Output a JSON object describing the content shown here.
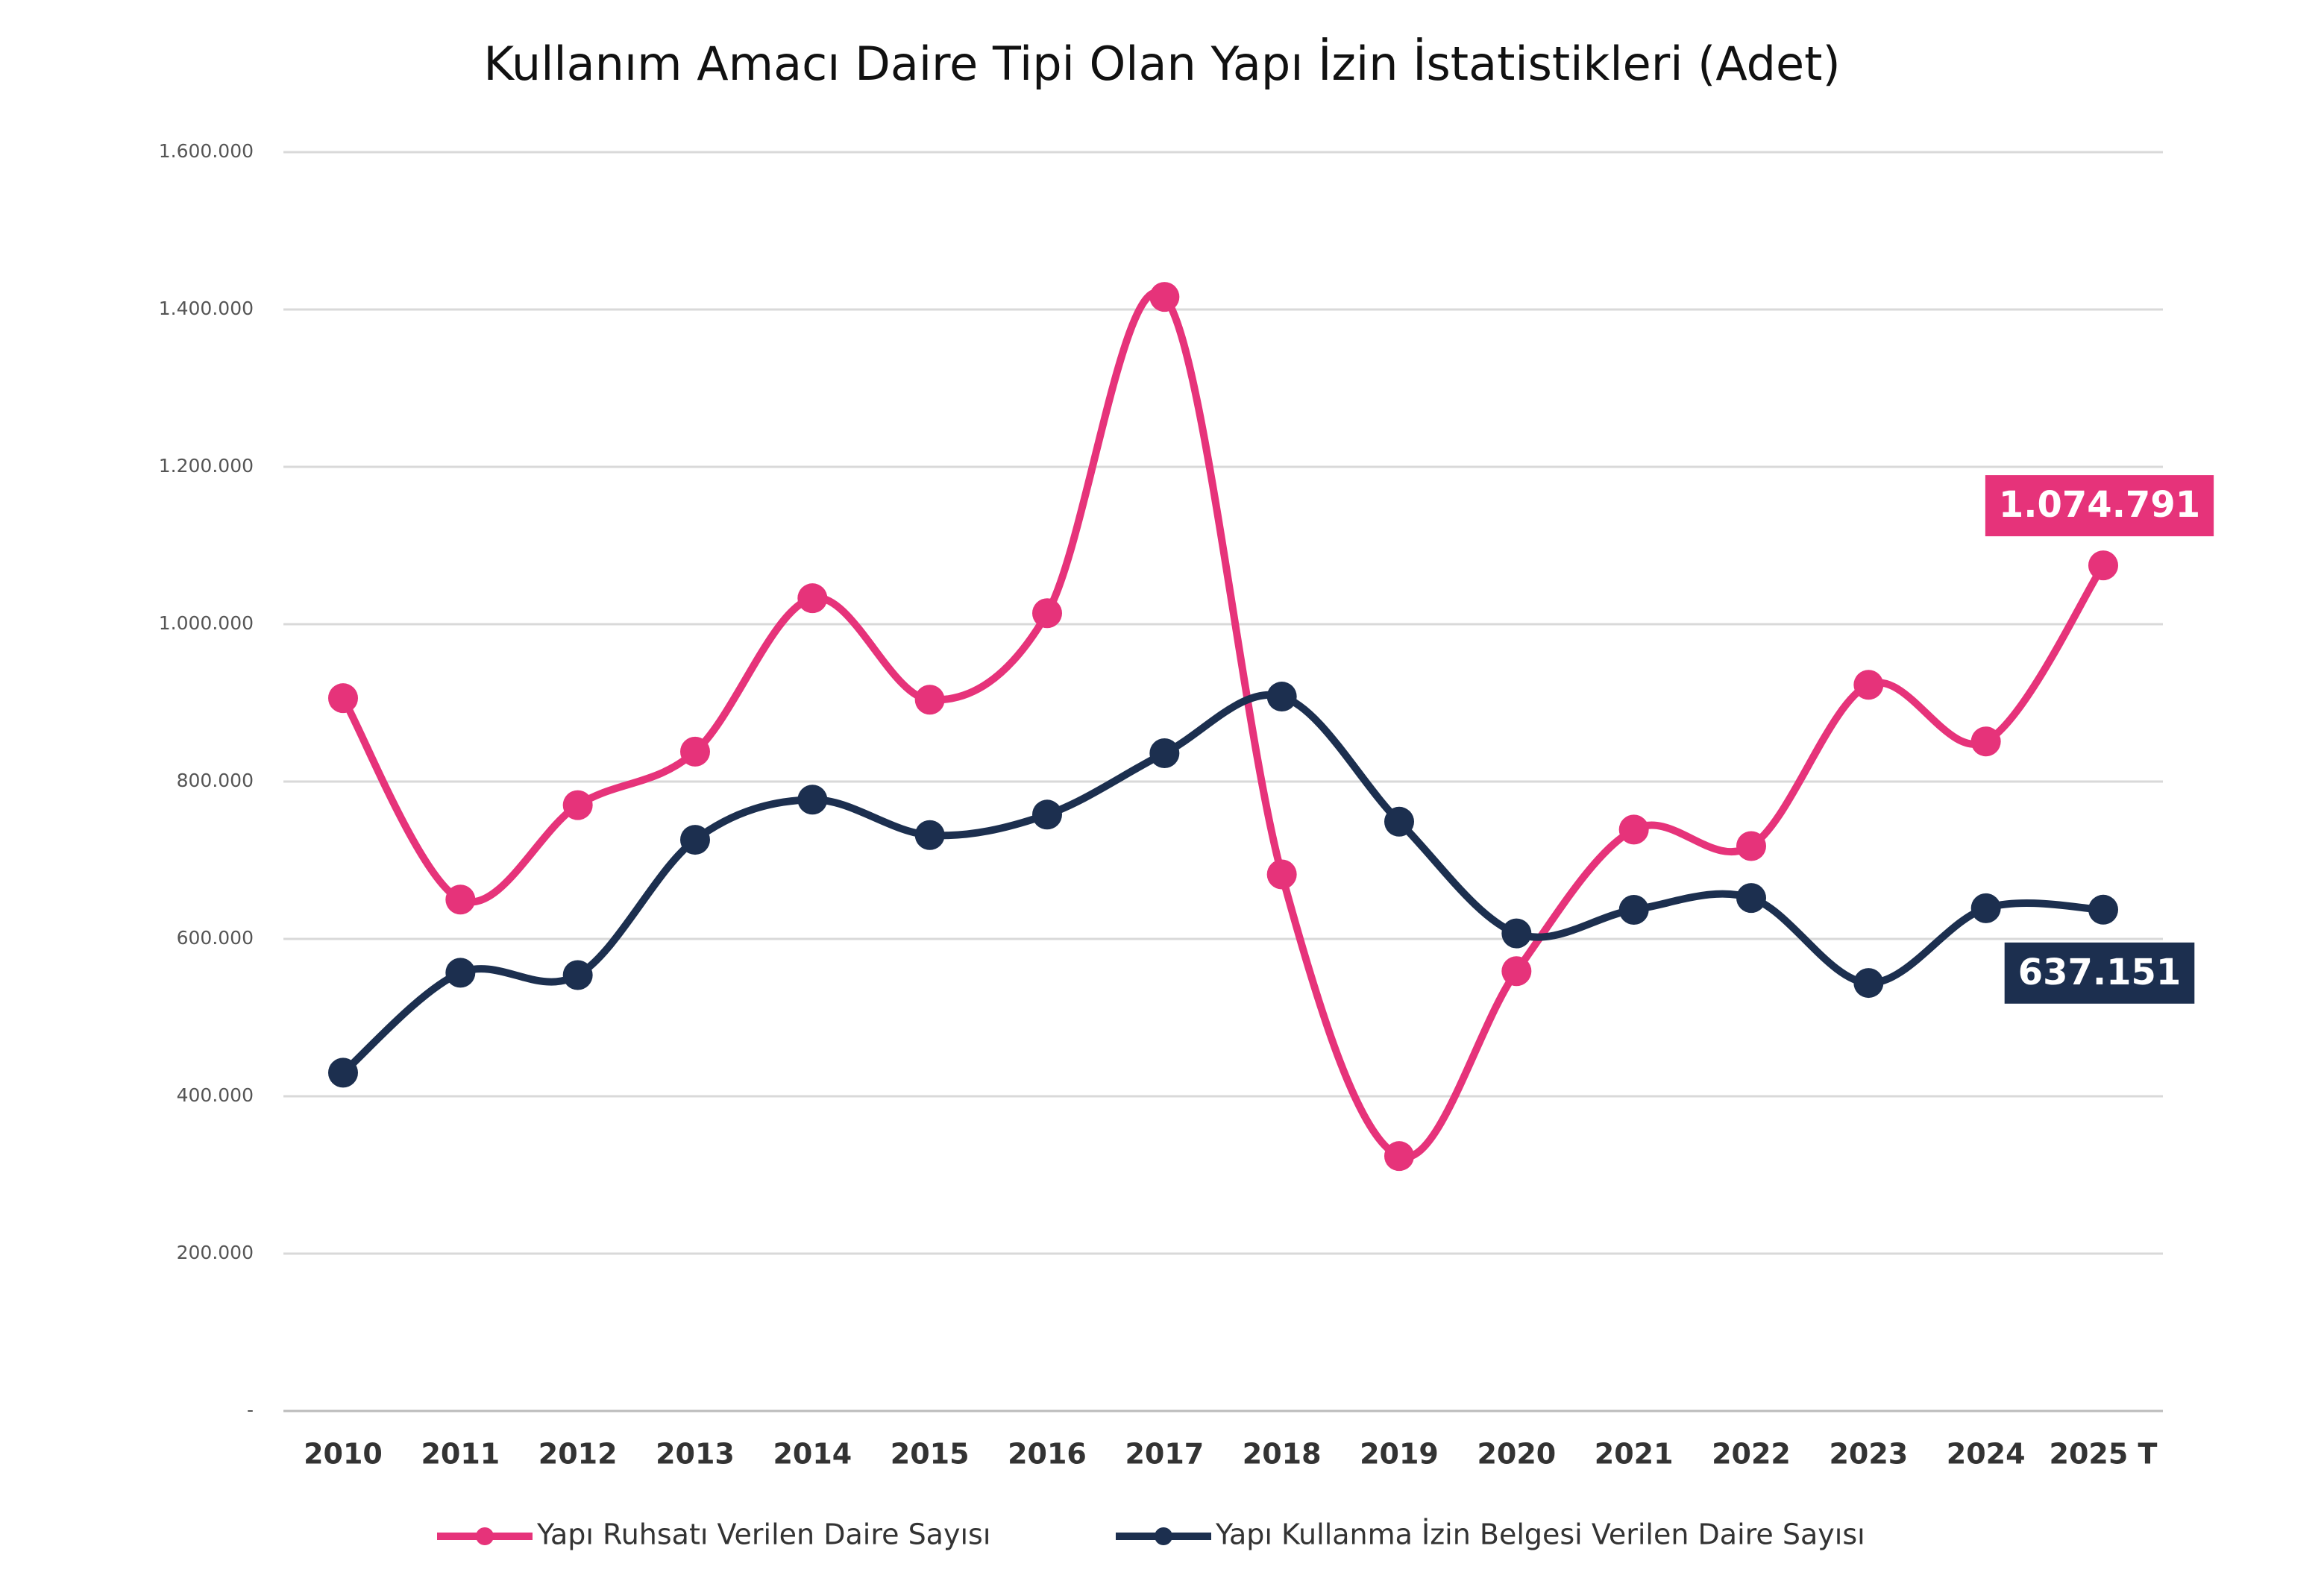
{
  "chart_data": {
    "type": "line",
    "title": "Kullanım Amacı Daire Tipi Olan Yapı İzin İstatistikleri (Adet)",
    "categories": [
      "2010",
      "2011",
      "2012",
      "2013",
      "2014",
      "2015",
      "2016",
      "2017",
      "2018",
      "2019",
      "2020",
      "2021",
      "2022",
      "2023",
      "2024",
      "2025 T"
    ],
    "series": [
      {
        "name": "Yapı Ruhsatı Verilen Daire Sayısı",
        "color": "#e6337a",
        "values": [
          906000,
          650000,
          770000,
          838000,
          1033000,
          904000,
          1014000,
          1416000,
          682000,
          324000,
          559000,
          739000,
          718000,
          923000,
          851000,
          1074791
        ],
        "value_labels": [
          null,
          null,
          null,
          null,
          null,
          null,
          null,
          null,
          null,
          null,
          null,
          null,
          null,
          null,
          null,
          "1.074.791"
        ]
      },
      {
        "name": "Yapı Kullanma İzin Belgesi Verilen Daire Sayısı",
        "color": "#1c2f4f",
        "values": [
          430000,
          557000,
          554000,
          726000,
          777000,
          732000,
          758000,
          836000,
          908000,
          749000,
          607000,
          637000,
          652000,
          544000,
          639000,
          637151
        ],
        "value_labels": [
          null,
          null,
          null,
          null,
          null,
          null,
          null,
          null,
          null,
          null,
          null,
          null,
          null,
          null,
          null,
          "637.151"
        ]
      }
    ],
    "ylim": [
      0,
      1600000
    ],
    "yticks": [
      {
        "value": 0,
        "label": "-"
      },
      {
        "value": 200000,
        "label": "200.000"
      },
      {
        "value": 400000,
        "label": "400.000"
      },
      {
        "value": 600000,
        "label": "600.000"
      },
      {
        "value": 800000,
        "label": "800.000"
      },
      {
        "value": 1000000,
        "label": "1.000.000"
      },
      {
        "value": 1200000,
        "label": "1.200.000"
      },
      {
        "value": 1400000,
        "label": "1.400.000"
      },
      {
        "value": 1600000,
        "label": "1.600.000"
      }
    ],
    "grid": true,
    "smooth": true,
    "legend": "bottom"
  }
}
